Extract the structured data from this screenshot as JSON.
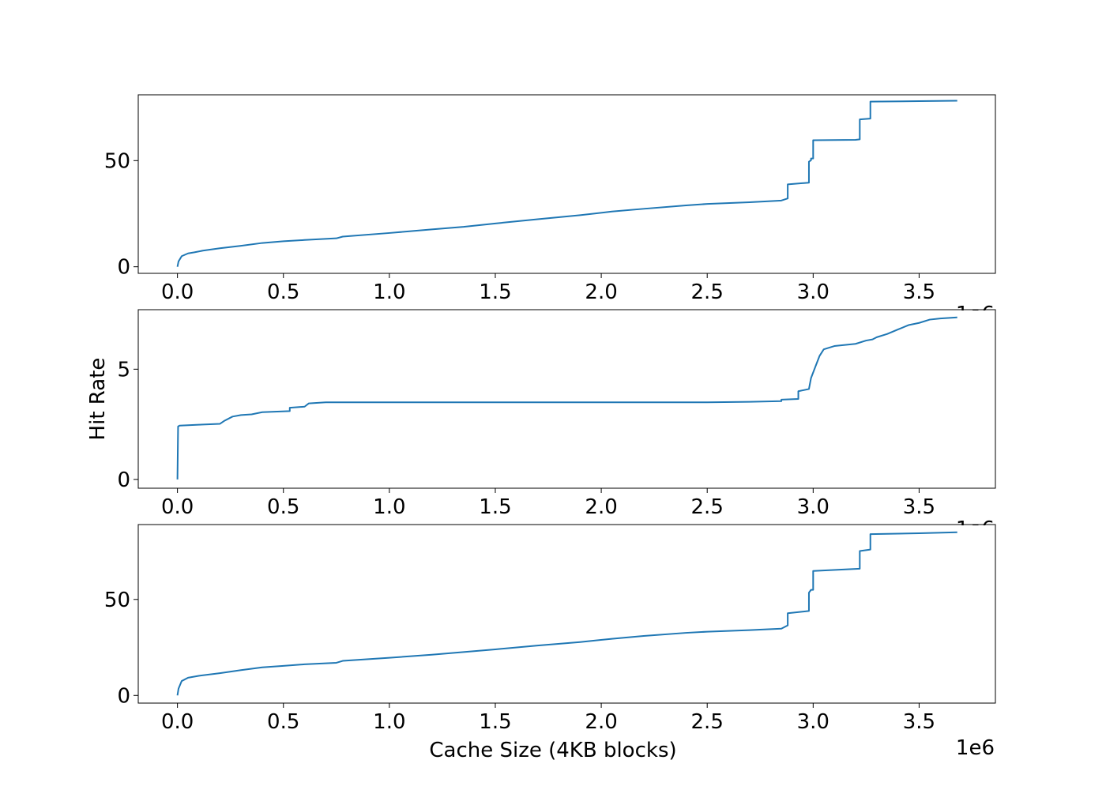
{
  "figure": {
    "ylabel": "Hit Rate",
    "xlabel": "Cache Size (4KB blocks)",
    "x_offset_label": "1e6",
    "clipped_offset_label": "1e6",
    "line_color": "#1f77b4"
  },
  "chart_data": [
    {
      "type": "line",
      "xlim": [
        -0.185,
        3.86
      ],
      "ylim": [
        -3.1,
        81
      ],
      "x_ticks": [
        0.0,
        0.5,
        1.0,
        1.5,
        2.0,
        2.5,
        3.0,
        3.5
      ],
      "x_tick_labels": [
        "0.0",
        "0.5",
        "1.0",
        "1.5",
        "2.0",
        "2.5",
        "3.0",
        "3.5"
      ],
      "y_ticks": [
        0,
        50
      ],
      "y_tick_labels": [
        "0",
        "50"
      ],
      "series": [
        {
          "x": [
            0,
            0.005,
            0.02,
            0.05,
            0.08,
            0.12,
            0.2,
            0.3,
            0.4,
            0.5,
            0.6,
            0.75,
            0.78,
            1.0,
            1.2,
            1.35,
            1.5,
            1.7,
            1.9,
            2.05,
            2.2,
            2.4,
            2.5,
            2.7,
            2.85,
            2.88,
            2.88,
            2.98,
            2.98,
            2.99,
            2.99,
            3.0,
            3.0,
            3.2,
            3.22,
            3.22,
            3.27,
            3.27,
            3.5,
            3.68
          ],
          "y": [
            0,
            2.5,
            5,
            6.3,
            6.8,
            7.6,
            8.7,
            9.9,
            11.2,
            12,
            12.6,
            13.4,
            14.2,
            15.9,
            17.6,
            18.8,
            20.4,
            22.4,
            24.3,
            26,
            27.3,
            28.9,
            29.6,
            30.4,
            31.2,
            32.2,
            38.8,
            39.6,
            49.5,
            50.2,
            51,
            51,
            59.6,
            59.8,
            60,
            69.4,
            69.8,
            77.8,
            78,
            78.2
          ]
        }
      ]
    },
    {
      "type": "line",
      "xlim": [
        -0.185,
        3.86
      ],
      "ylim": [
        -0.4,
        7.7
      ],
      "x_ticks": [
        0.0,
        0.5,
        1.0,
        1.5,
        2.0,
        2.5,
        3.0,
        3.5
      ],
      "x_tick_labels": [
        "0.0",
        "0.5",
        "1.0",
        "1.5",
        "2.0",
        "2.5",
        "3.0",
        "3.5"
      ],
      "y_ticks": [
        0,
        5
      ],
      "y_tick_labels": [
        "0",
        "5"
      ],
      "series": [
        {
          "x": [
            0,
            0.003,
            0.01,
            0.1,
            0.2,
            0.22,
            0.26,
            0.3,
            0.35,
            0.4,
            0.53,
            0.53,
            0.6,
            0.62,
            0.7,
            1.0,
            1.5,
            2.0,
            2.5,
            2.7,
            2.85,
            2.85,
            2.93,
            2.93,
            2.98,
            2.99,
            3.01,
            3.03,
            3.05,
            3.1,
            3.2,
            3.25,
            3.28,
            3.3,
            3.35,
            3.4,
            3.45,
            3.5,
            3.55,
            3.6,
            3.68
          ],
          "y": [
            0,
            2.4,
            2.44,
            2.48,
            2.52,
            2.65,
            2.85,
            2.92,
            2.95,
            3.05,
            3.1,
            3.25,
            3.3,
            3.45,
            3.5,
            3.5,
            3.5,
            3.5,
            3.5,
            3.52,
            3.55,
            3.62,
            3.65,
            4.0,
            4.1,
            4.6,
            5.1,
            5.6,
            5.9,
            6.05,
            6.15,
            6.3,
            6.35,
            6.45,
            6.6,
            6.8,
            7.0,
            7.1,
            7.25,
            7.3,
            7.35
          ]
        }
      ]
    },
    {
      "type": "line",
      "xlim": [
        -0.185,
        3.86
      ],
      "ylim": [
        -4,
        89
      ],
      "x_ticks": [
        0.0,
        0.5,
        1.0,
        1.5,
        2.0,
        2.5,
        3.0,
        3.5
      ],
      "x_tick_labels": [
        "0.0",
        "0.5",
        "1.0",
        "1.5",
        "2.0",
        "2.5",
        "3.0",
        "3.5"
      ],
      "y_ticks": [
        0,
        50
      ],
      "y_tick_labels": [
        "0",
        "50"
      ],
      "series": [
        {
          "x": [
            0,
            0.005,
            0.02,
            0.05,
            0.1,
            0.2,
            0.3,
            0.4,
            0.5,
            0.6,
            0.75,
            0.78,
            1.0,
            1.2,
            1.35,
            1.5,
            1.7,
            1.9,
            2.05,
            2.2,
            2.4,
            2.5,
            2.7,
            2.85,
            2.88,
            2.88,
            2.98,
            2.98,
            2.99,
            2.99,
            3.0,
            3.0,
            3.22,
            3.22,
            3.27,
            3.27,
            3.5,
            3.68
          ],
          "y": [
            0,
            3.5,
            7.5,
            9.2,
            10.2,
            11.6,
            13.2,
            14.6,
            15.4,
            16.2,
            17,
            18,
            19.6,
            21.2,
            22.6,
            24,
            26,
            27.8,
            29.5,
            31,
            32.6,
            33.2,
            34,
            34.8,
            36.5,
            42.8,
            44,
            53.5,
            55,
            55,
            55,
            64.8,
            66,
            75.2,
            76,
            84,
            84.5,
            85
          ]
        }
      ]
    }
  ]
}
